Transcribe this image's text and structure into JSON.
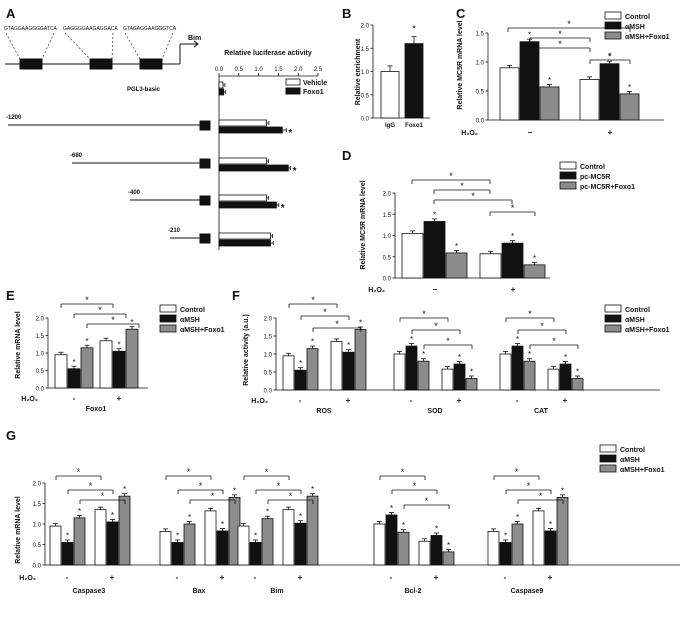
{
  "figure_panels": [
    "A",
    "B",
    "C",
    "D",
    "E",
    "F",
    "G"
  ],
  "colors": {
    "control": "#ffffff",
    "amsh": "#111111",
    "amsh_foxo1": "#8c8c8c",
    "stroke": "#111111"
  },
  "treatment_label": "H₂O₂",
  "signif": "*",
  "chart_data": [
    {
      "panel": "A",
      "type": "bar",
      "orientation": "horizontal",
      "title": "Relative luciferase activity",
      "xlim": [
        0,
        2.5
      ],
      "ticks": [
        "0.0",
        "0.5",
        "1.0",
        "1.5",
        "2.0",
        "2.5"
      ],
      "promoter": {
        "gene_label": "Bim",
        "motifs": [
          "GTAGGAAGGGGATCA",
          "GAGGGGAAGAGGACA",
          "GTAGAGGAAGGGTCA"
        ]
      },
      "legend": [
        "Vehicle",
        "Foxo1"
      ],
      "categories": [
        "PGL3-basic",
        "-1200",
        "-680",
        "-400",
        "-210"
      ],
      "series": [
        {
          "name": "Vehicle",
          "values": [
            0.1,
            1.2,
            1.2,
            1.2,
            1.3
          ],
          "errors": [
            0.05,
            0.06,
            0.05,
            0.05,
            0.05
          ]
        },
        {
          "name": "Foxo1",
          "values": [
            0.12,
            1.6,
            1.75,
            1.45,
            1.3
          ],
          "errors": [
            0.05,
            0.1,
            0.06,
            0.06,
            0.07
          ]
        }
      ],
      "signif": [
        "",
        "*",
        "*",
        "*",
        ""
      ]
    },
    {
      "panel": "B",
      "type": "bar",
      "ylabel": "Relative enrichment",
      "ylim": [
        0,
        2.0
      ],
      "categories": [
        "IgG",
        "Foxo1"
      ],
      "values": [
        1.0,
        1.6
      ],
      "errors": [
        0.12,
        0.15
      ],
      "signif": [
        "",
        "*"
      ]
    },
    {
      "panel": "C",
      "type": "bar",
      "ylabel": "Relative MC5R mRNA level",
      "ylim": [
        0,
        1.5
      ],
      "ticks": [
        "0.0",
        "0.5",
        "1.0",
        "1.5"
      ],
      "legend": [
        "Control",
        "αMSH",
        "αMSH+Foxo1"
      ],
      "groups": [
        "−",
        "+"
      ],
      "series": [
        {
          "name": "Control",
          "values": [
            0.9,
            0.7
          ],
          "errors": [
            0.07,
            0.06
          ]
        },
        {
          "name": "αMSH",
          "values": [
            1.35,
            0.97
          ],
          "errors": [
            0.07,
            0.05
          ]
        },
        {
          "name": "αMSH+Foxo1",
          "values": [
            0.57,
            0.45
          ],
          "errors": [
            0.05,
            0.04
          ]
        }
      ],
      "signif": [
        [
          "",
          "*",
          "*"
        ],
        [
          "",
          "*",
          "*"
        ]
      ]
    },
    {
      "panel": "D",
      "type": "bar",
      "ylabel": "Relative MC5R mRNA level",
      "ylim": [
        0,
        2.0
      ],
      "ticks": [
        "0.0",
        "0.5",
        "1.0",
        "1.5",
        "2.0"
      ],
      "legend": [
        "Control",
        "pc-MC5R",
        "pc-MC5R+Foxo1"
      ],
      "groups": [
        "−",
        "+"
      ],
      "series": [
        {
          "name": "Control",
          "values": [
            1.05,
            0.57
          ],
          "errors": [
            0.09,
            0.08
          ]
        },
        {
          "name": "pc-MC5R",
          "values": [
            1.33,
            0.82
          ],
          "errors": [
            0.09,
            0.08
          ]
        },
        {
          "name": "pc-MC5R+Foxo1",
          "values": [
            0.59,
            0.31
          ],
          "errors": [
            0.07,
            0.06
          ]
        }
      ],
      "signif": [
        [
          "",
          "*",
          "*"
        ],
        [
          "",
          "*",
          "*"
        ]
      ]
    },
    {
      "panel": "E",
      "type": "bar",
      "ylabel": "Relative mRNA  level",
      "ylim": [
        0,
        2.0
      ],
      "ticks": [
        "0.0",
        "0.5",
        "1.0",
        "1.5",
        "2.0"
      ],
      "legend": [
        "Control",
        "αMSH",
        "αMSH+Foxo1"
      ],
      "groups": [
        "-",
        "+"
      ],
      "xlabel": "Foxo1",
      "series": [
        {
          "name": "Control",
          "values": [
            0.95,
            1.35
          ],
          "errors": [
            0.04,
            0.05
          ]
        },
        {
          "name": "αMSH",
          "values": [
            0.55,
            1.05
          ],
          "errors": [
            0.05,
            0.05
          ]
        },
        {
          "name": "αMSH+Foxo1",
          "values": [
            1.15,
            1.68
          ],
          "errors": [
            0.07,
            0.05
          ]
        }
      ],
      "signif": [
        [
          "",
          "*",
          "*"
        ],
        [
          "",
          "*",
          "*"
        ]
      ]
    },
    {
      "panel": "F",
      "type": "bar",
      "ylabel": "Relative activity (a.u.)",
      "ylim": [
        0,
        2.0
      ],
      "ticks": [
        "0.0",
        "0.5",
        "1.0",
        "1.5",
        "2.0"
      ],
      "legend": [
        "Control",
        "αMSH",
        "αMSH+Foxo1"
      ],
      "groups": [
        "-",
        "+"
      ],
      "genes": [
        "ROS",
        "SOD",
        "CAT"
      ],
      "data": [
        {
          "series": [
            [
              0.95,
              1.35
            ],
            [
              0.55,
              1.05
            ],
            [
              1.15,
              1.68
            ]
          ]
        },
        {
          "series": [
            [
              1.0,
              0.58
            ],
            [
              1.22,
              0.72
            ],
            [
              0.8,
              0.32
            ]
          ]
        },
        {
          "series": [
            [
              1.0,
              0.58
            ],
            [
              1.22,
              0.72
            ],
            [
              0.8,
              0.32
            ]
          ]
        }
      ]
    },
    {
      "panel": "G",
      "type": "bar",
      "ylabel": "Relative mRNA level",
      "ylim": [
        0,
        2.0
      ],
      "ticks": [
        "0.0",
        "0.5",
        "1.0",
        "1.5",
        "2.0"
      ],
      "legend": [
        "Control",
        "αMSH",
        "αMSH+Foxo1"
      ],
      "groups": [
        "-",
        "+"
      ],
      "genes": [
        "Caspase3",
        "Bax",
        "Bim",
        "Bcl-2",
        "Caspase9"
      ],
      "data": [
        {
          "series": [
            [
              0.95,
              1.35
            ],
            [
              0.55,
              1.05
            ],
            [
              1.15,
              1.68
            ]
          ]
        },
        {
          "series": [
            [
              0.82,
              1.32
            ],
            [
              0.55,
              0.83
            ],
            [
              1.0,
              1.65
            ]
          ]
        },
        {
          "series": [
            [
              0.95,
              1.35
            ],
            [
              0.55,
              1.02
            ],
            [
              1.13,
              1.68
            ]
          ]
        },
        {
          "series": [
            [
              1.0,
              0.58
            ],
            [
              1.22,
              0.72
            ],
            [
              0.8,
              0.32
            ]
          ]
        },
        {
          "series": [
            [
              0.82,
              1.32
            ],
            [
              0.55,
              0.83
            ],
            [
              1.0,
              1.65
            ]
          ]
        }
      ]
    }
  ]
}
